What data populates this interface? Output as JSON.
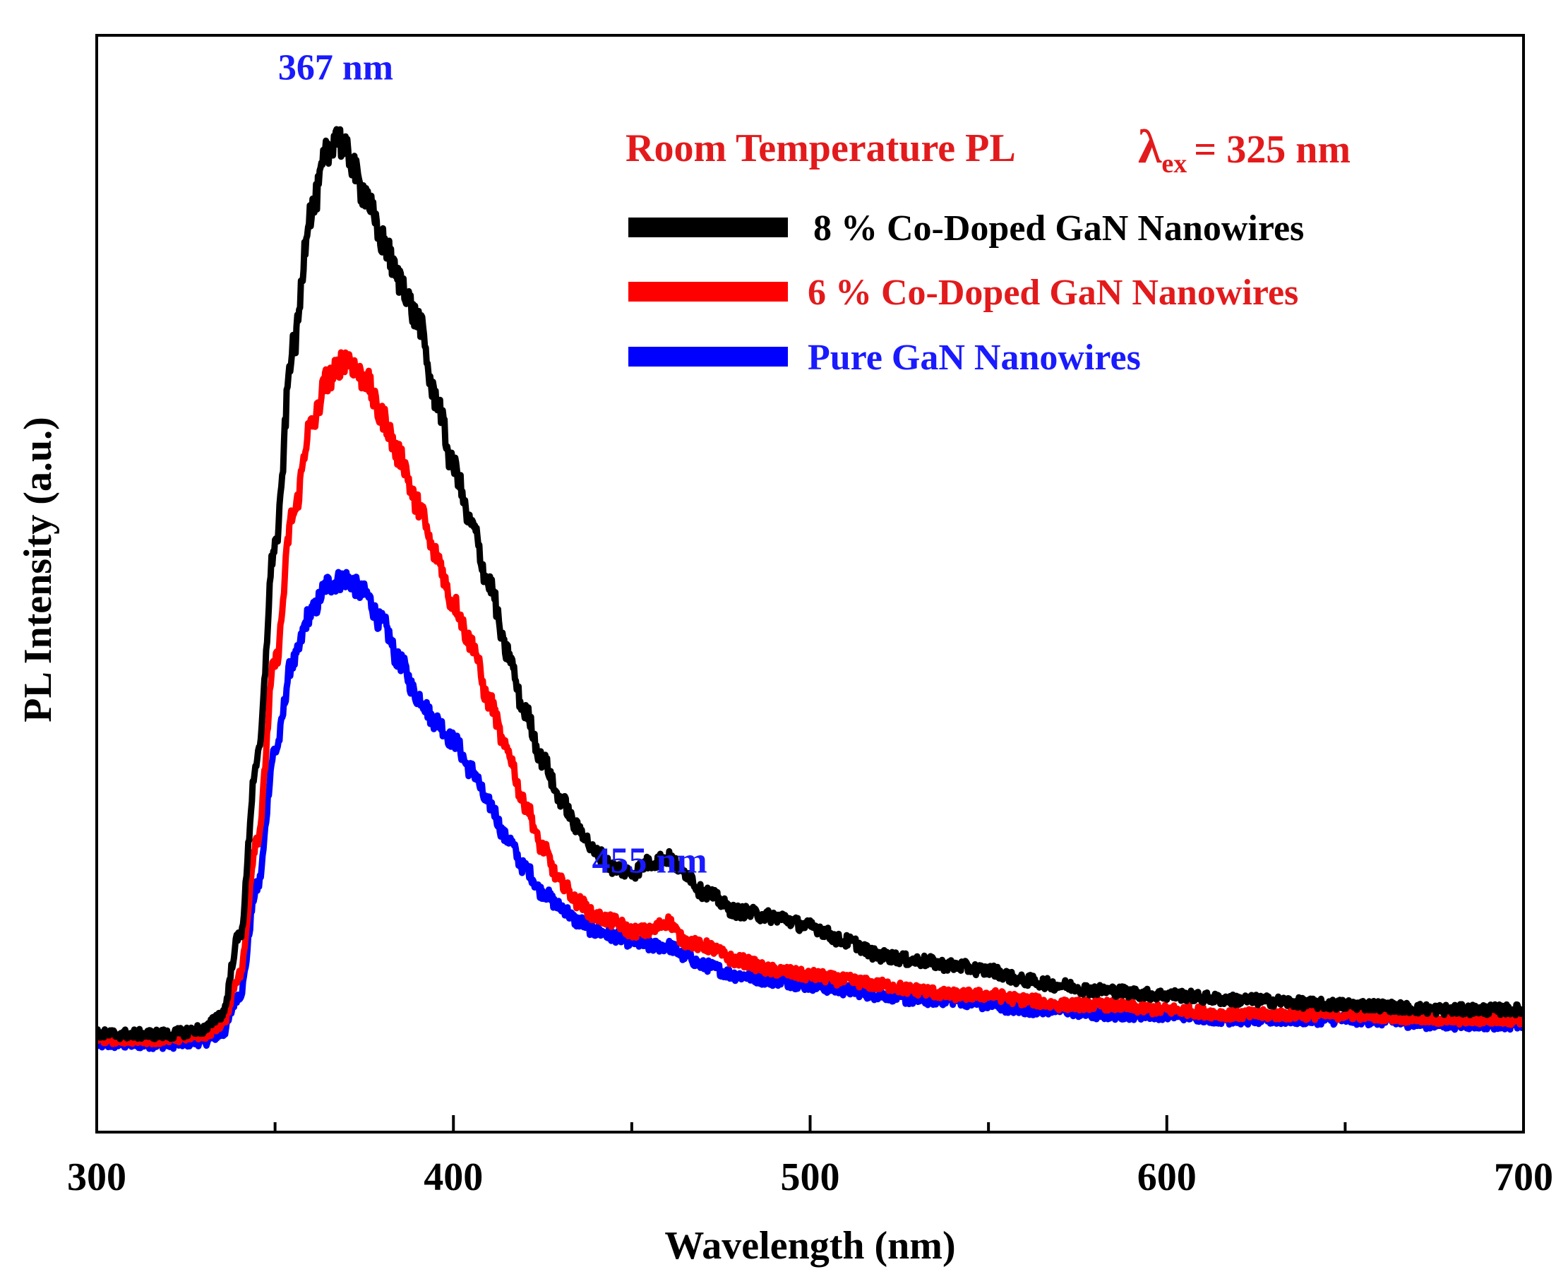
{
  "chart_data": {
    "type": "line",
    "title": "Room Temperature PL",
    "excitation": {
      "symbol": "λ",
      "subscript": "ex",
      "value_text": "= 325 nm"
    },
    "xlabel": "Wavelength (nm)",
    "ylabel": "PL Intensity (a.u.)",
    "xlim": [
      300,
      700
    ],
    "ylim": [
      0,
      1.12
    ],
    "x_ticks": [
      300,
      400,
      500,
      600,
      700
    ],
    "x_minor_step": 50,
    "grid": false,
    "legend_position": "top-right",
    "annotations": [
      {
        "text": "367 nm",
        "x": 367,
        "y": 1.075,
        "color": "#1a1aff"
      },
      {
        "text": "455 nm",
        "x": 455,
        "y": 0.265,
        "color": "#1a1aff"
      }
    ],
    "series": [
      {
        "name": "8 % Co-Doped GaN Nanowires",
        "color": "#000000",
        "x": [
          300,
          320,
          330,
          335,
          340,
          345,
          350,
          355,
          360,
          365,
          367,
          370,
          375,
          380,
          385,
          390,
          395,
          400,
          405,
          410,
          415,
          420,
          425,
          430,
          435,
          440,
          445,
          450,
          455,
          460,
          465,
          470,
          480,
          490,
          500,
          510,
          520,
          530,
          540,
          550,
          560,
          570,
          580,
          600,
          620,
          650,
          680,
          700
        ],
        "y": [
          0.1,
          0.1,
          0.105,
          0.12,
          0.2,
          0.38,
          0.6,
          0.8,
          0.94,
          1.0,
          1.02,
          1.0,
          0.96,
          0.91,
          0.87,
          0.83,
          0.75,
          0.68,
          0.62,
          0.56,
          0.49,
          0.43,
          0.38,
          0.34,
          0.31,
          0.285,
          0.27,
          0.265,
          0.275,
          0.28,
          0.265,
          0.245,
          0.225,
          0.22,
          0.21,
          0.195,
          0.18,
          0.175,
          0.17,
          0.165,
          0.155,
          0.15,
          0.145,
          0.14,
          0.135,
          0.13,
          0.125,
          0.125
        ]
      },
      {
        "name": "6 % Co-Doped GaN Nanowires",
        "color": "#ff0000",
        "x": [
          300,
          320,
          330,
          335,
          340,
          345,
          350,
          355,
          360,
          365,
          370,
          375,
          380,
          385,
          390,
          395,
          400,
          405,
          410,
          415,
          420,
          425,
          430,
          435,
          440,
          445,
          450,
          455,
          460,
          465,
          470,
          480,
          490,
          500,
          510,
          520,
          530,
          540,
          550,
          560,
          570,
          580,
          600,
          620,
          650,
          680,
          700
        ],
        "y": [
          0.095,
          0.095,
          0.1,
          0.11,
          0.16,
          0.3,
          0.48,
          0.63,
          0.72,
          0.77,
          0.79,
          0.77,
          0.73,
          0.69,
          0.64,
          0.59,
          0.54,
          0.5,
          0.44,
          0.39,
          0.335,
          0.29,
          0.255,
          0.235,
          0.22,
          0.215,
          0.205,
          0.205,
          0.215,
          0.195,
          0.19,
          0.175,
          0.165,
          0.16,
          0.155,
          0.15,
          0.145,
          0.14,
          0.14,
          0.135,
          0.13,
          0.13,
          0.125,
          0.12,
          0.12,
          0.115,
          0.115
        ]
      },
      {
        "name": "Pure GaN Nanowires",
        "color": "#0000ff",
        "x": [
          300,
          320,
          330,
          335,
          340,
          345,
          350,
          355,
          360,
          365,
          370,
          375,
          380,
          385,
          390,
          395,
          400,
          405,
          410,
          415,
          420,
          425,
          430,
          435,
          440,
          445,
          450,
          455,
          460,
          465,
          470,
          480,
          490,
          500,
          510,
          520,
          530,
          540,
          550,
          560,
          570,
          580,
          600,
          620,
          650,
          680,
          700
        ],
        "y": [
          0.09,
          0.09,
          0.093,
          0.1,
          0.14,
          0.25,
          0.39,
          0.48,
          0.53,
          0.56,
          0.565,
          0.55,
          0.52,
          0.48,
          0.445,
          0.42,
          0.4,
          0.37,
          0.335,
          0.3,
          0.27,
          0.245,
          0.23,
          0.215,
          0.205,
          0.2,
          0.195,
          0.19,
          0.19,
          0.18,
          0.17,
          0.16,
          0.155,
          0.15,
          0.145,
          0.14,
          0.135,
          0.135,
          0.13,
          0.125,
          0.125,
          0.12,
          0.12,
          0.115,
          0.115,
          0.11,
          0.11
        ]
      }
    ]
  }
}
